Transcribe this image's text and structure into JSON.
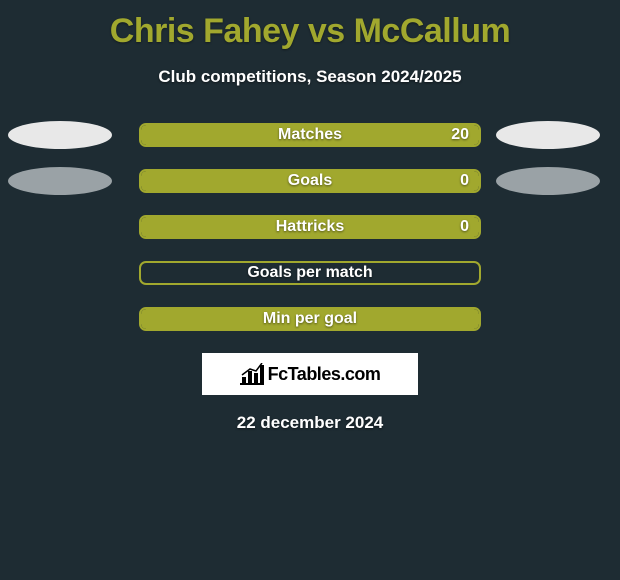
{
  "title": "Chris Fahey vs McCallum",
  "subtitle": "Club competitions, Season 2024/2025",
  "date": "22 december 2024",
  "logo_text": "FcTables.com",
  "colors": {
    "background": "#1e2c33",
    "title": "#a1a82e",
    "text": "#ffffff",
    "bar_border": "#a1a82e",
    "bar_fill": "#a1a82e",
    "ellipse_white": "#e8e8e8",
    "ellipse_gray": "#9aa2a6",
    "logo_bg": "#ffffff"
  },
  "rows": [
    {
      "label": "Matches",
      "value_right": "20",
      "fill_pct": 100,
      "left_ellipse": "#e8e8e8",
      "right_ellipse": "#e8e8e8"
    },
    {
      "label": "Goals",
      "value_right": "0",
      "fill_pct": 100,
      "left_ellipse": "#9aa2a6",
      "right_ellipse": "#9aa2a6"
    },
    {
      "label": "Hattricks",
      "value_right": "0",
      "fill_pct": 100,
      "left_ellipse": null,
      "right_ellipse": null
    },
    {
      "label": "Goals per match",
      "value_right": "",
      "fill_pct": 0,
      "left_ellipse": null,
      "right_ellipse": null
    },
    {
      "label": "Min per goal",
      "value_right": "",
      "fill_pct": 100,
      "left_ellipse": null,
      "right_ellipse": null
    }
  ]
}
